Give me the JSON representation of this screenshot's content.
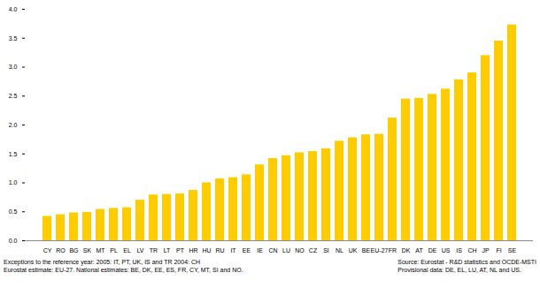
{
  "chart_data": {
    "type": "bar",
    "categories": [
      "CY",
      "RO",
      "BG",
      "SK",
      "MT",
      "PL",
      "EL",
      "LV",
      "TR",
      "LT",
      "PT",
      "HR",
      "HU",
      "RU",
      "IT",
      "EE",
      "IE",
      "CN",
      "LU",
      "NO",
      "CZ",
      "SI",
      "NL",
      "UK",
      "BE",
      "EU-27",
      "FR",
      "DK",
      "AT",
      "DE",
      "US",
      "IS",
      "CH",
      "JP",
      "FI",
      "SE"
    ],
    "values": [
      0.42,
      0.45,
      0.48,
      0.49,
      0.54,
      0.56,
      0.57,
      0.7,
      0.79,
      0.8,
      0.81,
      0.87,
      1.0,
      1.07,
      1.09,
      1.14,
      1.31,
      1.42,
      1.47,
      1.52,
      1.54,
      1.59,
      1.72,
      1.78,
      1.83,
      1.84,
      2.12,
      2.45,
      2.46,
      2.53,
      2.62,
      2.78,
      2.9,
      3.2,
      3.45,
      3.73
    ],
    "color": "#ffcc00",
    "ylim": [
      0,
      4
    ],
    "yticks": [
      {
        "value": 0,
        "label": "0.0"
      },
      {
        "value": 0.5,
        "label": "0.5"
      },
      {
        "value": 1,
        "label": "1.0"
      },
      {
        "value": 1.5,
        "label": "1.5"
      },
      {
        "value": 2,
        "label": "2.0"
      },
      {
        "value": 2.5,
        "label": "2.5"
      },
      {
        "value": 3,
        "label": "3.0"
      },
      {
        "value": 3.5,
        "label": "3.5"
      },
      {
        "value": 4,
        "label": "4.0"
      }
    ],
    "grid": false,
    "caption": [
      "Exceptions to the reference year: 2005: IT, PT, UK, IS and TR 2004: CH",
      "Eurostat estimate: EU-27.  National estimates: BE, DK, EE, ES, FR, CY, MT, SI and NO."
    ],
    "source": [
      "Source: Eurostat - R&D statistics and OCDE-MSTI",
      "Provisional data: DE, EL, LU, AT, NL and US."
    ]
  }
}
